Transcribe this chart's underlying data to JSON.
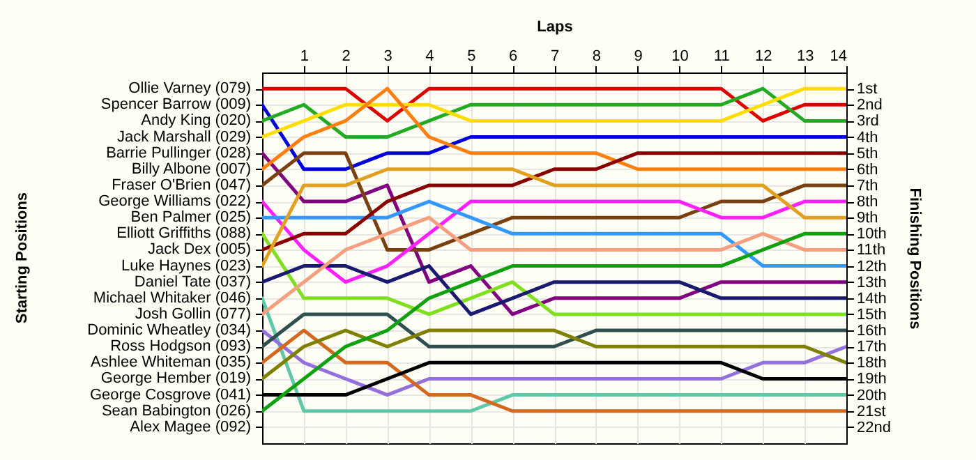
{
  "chart_data": {
    "type": "line",
    "xlabel": "Laps",
    "ylabel": "Finishing Positions",
    "x": [
      0,
      1,
      2,
      3,
      4,
      5,
      6,
      7,
      8,
      9,
      10,
      11,
      12,
      13,
      14
    ],
    "xlim": [
      0,
      14
    ],
    "xticks": [
      1,
      2,
      3,
      4,
      5,
      6,
      7,
      8,
      9,
      10,
      11,
      12,
      13,
      14
    ],
    "ylim": [
      23,
      0
    ],
    "yticks": [
      {
        "value": 1,
        "label": "1st"
      },
      {
        "value": 2,
        "label": "2nd"
      },
      {
        "value": 3,
        "label": "3rd"
      },
      {
        "value": 4,
        "label": "4th"
      },
      {
        "value": 5,
        "label": "5th"
      },
      {
        "value": 6,
        "label": "6th"
      },
      {
        "value": 7,
        "label": "7th"
      },
      {
        "value": 8,
        "label": "8th"
      },
      {
        "value": 9,
        "label": "9th"
      },
      {
        "value": 10,
        "label": "10th"
      },
      {
        "value": 11,
        "label": "11th"
      },
      {
        "value": 12,
        "label": "12th"
      },
      {
        "value": 13,
        "label": "13th"
      },
      {
        "value": 14,
        "label": "14th"
      },
      {
        "value": 15,
        "label": "15th"
      },
      {
        "value": 16,
        "label": "16th"
      },
      {
        "value": 17,
        "label": "17th"
      },
      {
        "value": 18,
        "label": "18th"
      },
      {
        "value": 19,
        "label": "19th"
      },
      {
        "value": 20,
        "label": "20th"
      },
      {
        "value": 21,
        "label": "21st"
      },
      {
        "value": 22,
        "label": "22nd"
      }
    ],
    "annotations": [
      "Starting Positions",
      "Ollie Varney (079)",
      "Spencer Barrow (009)",
      "Andy King (020)",
      "Jack Marshall (029)",
      "Barrie Pullinger (028)",
      "Billy Albone (007)",
      "Fraser O'Brien (047)",
      "George Williams (022)",
      "Ben Palmer (025)",
      "Elliott Griffiths (088)",
      "Jack Dex (005)",
      "Luke Haynes (023)",
      "Daniel Tate (037)",
      "Michael Whitaker (046)",
      "Josh Gollin (077)",
      "Dominic Wheatley (034)",
      "Ross Hodgson (093)",
      "Ashlee Whiteman (035)",
      "George Hember (019)",
      "George Cosgrove (041)",
      "Sean Babington (026)",
      "Alex Magee (092)"
    ],
    "grid": true,
    "series": [
      {
        "color": "#dd0000",
        "values": [
          1,
          1,
          1,
          3,
          1,
          1,
          1,
          1,
          1,
          1,
          1,
          1,
          3,
          2,
          2
        ]
      },
      {
        "color": "#0000dd",
        "values": [
          2,
          6,
          6,
          5,
          5,
          4,
          4,
          4,
          4,
          4,
          4,
          4,
          4,
          4,
          4
        ]
      },
      {
        "color": "#22aa22",
        "values": [
          3,
          2,
          4,
          4,
          3,
          2,
          2,
          2,
          2,
          2,
          2,
          2,
          1,
          3,
          3
        ]
      },
      {
        "color": "#ffdd00",
        "values": [
          4,
          3,
          2,
          2,
          2,
          3,
          3,
          3,
          3,
          3,
          3,
          3,
          2,
          1,
          1
        ]
      },
      {
        "color": "#800080",
        "values": [
          5,
          8,
          8,
          7,
          13,
          12,
          15,
          14,
          14,
          14,
          14,
          13,
          13,
          13,
          13
        ]
      },
      {
        "color": "#ff8010",
        "values": [
          6,
          4,
          3,
          1,
          4,
          5,
          5,
          5,
          5,
          6,
          6,
          6,
          6,
          6,
          6
        ]
      },
      {
        "color": "#7a4010",
        "values": [
          7,
          5,
          5,
          11,
          11,
          10,
          9,
          9,
          9,
          9,
          9,
          8,
          8,
          7,
          7
        ]
      },
      {
        "color": "#ff20ff",
        "values": [
          8,
          11,
          13,
          12,
          10,
          8,
          8,
          8,
          8,
          8,
          8,
          9,
          9,
          8,
          8
        ]
      },
      {
        "color": "#3399ff",
        "values": [
          9,
          9,
          9,
          9,
          8,
          9,
          10,
          10,
          10,
          10,
          10,
          10,
          12,
          12,
          12
        ]
      },
      {
        "color": "#80e020",
        "values": [
          10,
          14,
          14,
          14,
          15,
          14,
          13,
          15,
          15,
          15,
          15,
          15,
          15,
          15,
          15
        ]
      },
      {
        "color": "#880000",
        "values": [
          11,
          10,
          10,
          8,
          7,
          7,
          7,
          6,
          6,
          5,
          5,
          5,
          5,
          5,
          5
        ]
      },
      {
        "color": "#e0a020",
        "values": [
          12,
          7,
          7,
          6,
          6,
          6,
          6,
          7,
          7,
          7,
          7,
          7,
          7,
          9,
          9
        ]
      },
      {
        "color": "#1a1a70",
        "values": [
          13,
          12,
          12,
          13,
          12,
          15,
          14,
          13,
          13,
          13,
          13,
          14,
          14,
          14,
          14
        ]
      },
      {
        "color": "#60c8a8",
        "values": [
          14,
          21,
          21,
          21,
          21,
          21,
          20,
          20,
          20,
          20,
          20,
          20,
          20,
          20,
          20
        ]
      },
      {
        "color": "#f4a080",
        "values": [
          15,
          13,
          11,
          10,
          9,
          11,
          11,
          11,
          11,
          11,
          11,
          11,
          10,
          11,
          11
        ]
      },
      {
        "color": "#9370db",
        "values": [
          16,
          18,
          19,
          20,
          19,
          19,
          19,
          19,
          19,
          19,
          19,
          19,
          18,
          18,
          17
        ]
      },
      {
        "color": "#2f4f4f",
        "values": [
          17,
          15,
          15,
          15,
          17,
          17,
          17,
          17,
          16,
          16,
          16,
          16,
          16,
          16,
          16
        ]
      },
      {
        "color": "#d2691e",
        "values": [
          18,
          16,
          18,
          18,
          20,
          20,
          21,
          21,
          21,
          21,
          21,
          21,
          21,
          21,
          21
        ]
      },
      {
        "color": "#808000",
        "values": [
          19,
          17,
          16,
          17,
          16,
          16,
          16,
          16,
          17,
          17,
          17,
          17,
          17,
          17,
          18
        ]
      },
      {
        "color": "#000000",
        "values": [
          20,
          20,
          20,
          19,
          18,
          18,
          18,
          18,
          18,
          18,
          18,
          18,
          19,
          19,
          19
        ]
      },
      {
        "color": "#10a010",
        "values": [
          21,
          19,
          17,
          16,
          14,
          13,
          12,
          12,
          12,
          12,
          12,
          12,
          11,
          10,
          10
        ]
      }
    ]
  }
}
